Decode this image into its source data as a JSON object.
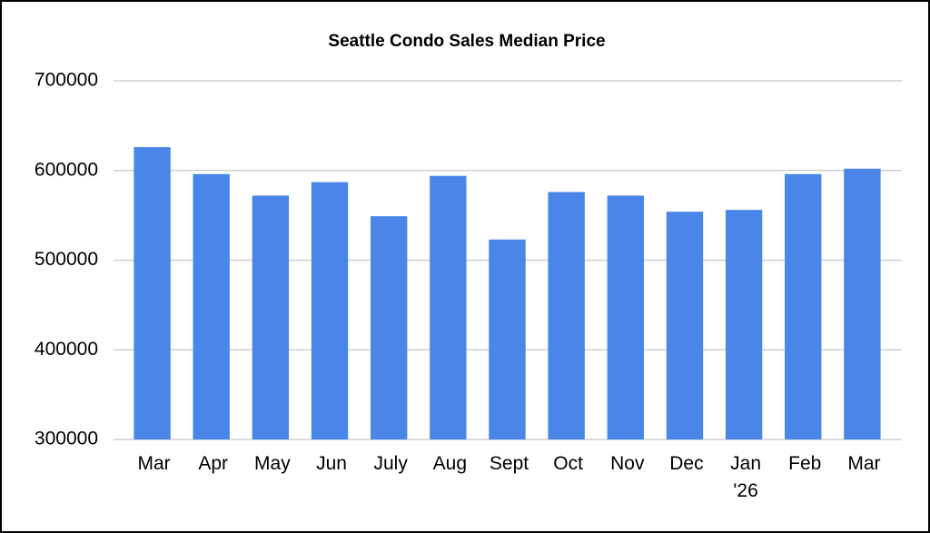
{
  "chart_data": {
    "type": "bar",
    "title": "Seattle Condo Sales Median Price",
    "categories": [
      "Mar",
      "Apr",
      "May",
      "Jun",
      "July",
      "Aug",
      "Sept",
      "Oct",
      "Nov",
      "Dec",
      "Jan '26",
      "Feb",
      "Mar"
    ],
    "values": [
      626000,
      596000,
      572000,
      587000,
      549000,
      594000,
      523000,
      576000,
      572000,
      554000,
      556000,
      596000,
      602000
    ],
    "color": "#4a86e8",
    "ylim": [
      300000,
      700000
    ],
    "yticks": [
      300000,
      400000,
      500000,
      600000,
      700000
    ],
    "grid": true
  }
}
